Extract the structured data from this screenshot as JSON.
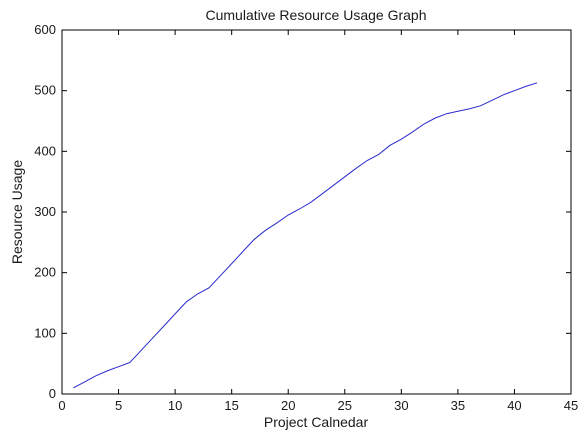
{
  "chart_data": {
    "type": "line",
    "title": "Cumulative Resource Usage Graph",
    "xlabel": "Project Calnedar",
    "ylabel": "Resource Usage",
    "xlim": [
      0,
      45
    ],
    "ylim": [
      0,
      600
    ],
    "xticks": [
      0,
      5,
      10,
      15,
      20,
      25,
      30,
      35,
      40,
      45
    ],
    "yticks": [
      0,
      100,
      200,
      300,
      400,
      500,
      600
    ],
    "grid": false,
    "series": [
      {
        "color": "#2a2acd",
        "x": [
          1,
          2,
          3,
          4,
          5,
          6,
          7,
          8,
          9,
          10,
          11,
          12,
          13,
          14,
          15,
          16,
          17,
          18,
          19,
          20,
          21,
          22,
          23,
          24,
          25,
          26,
          27,
          28,
          29,
          30,
          31,
          32,
          33,
          34,
          35,
          36,
          37,
          38,
          39,
          40,
          41,
          42
        ],
        "y": [
          10,
          20,
          30,
          38,
          45,
          52,
          72,
          92,
          112,
          132,
          152,
          165,
          175,
          195,
          215,
          235,
          255,
          270,
          282,
          295,
          305,
          316,
          330,
          344,
          358,
          372,
          385,
          395,
          410,
          420,
          432,
          445,
          455,
          462,
          466,
          470,
          475,
          484,
          493,
          500,
          507,
          513
        ]
      }
    ]
  }
}
